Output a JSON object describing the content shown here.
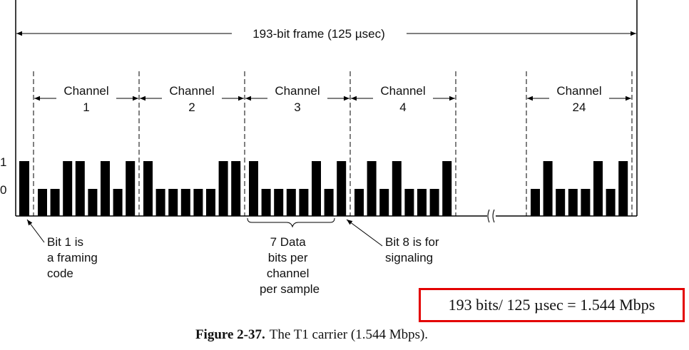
{
  "frame_label": "193-bit frame  (125 µsec)",
  "level_labels": {
    "one": "1",
    "zero": "0"
  },
  "framing_bit": 1,
  "channels": [
    {
      "label": "Channel",
      "number": "1",
      "bits": [
        0,
        0,
        1,
        1,
        0,
        1,
        0,
        1
      ]
    },
    {
      "label": "Channel",
      "number": "2",
      "bits": [
        1,
        0,
        0,
        0,
        0,
        0,
        1,
        1
      ]
    },
    {
      "label": "Channel",
      "number": "3",
      "bits": [
        1,
        0,
        0,
        0,
        0,
        1,
        0,
        1
      ]
    },
    {
      "label": "Channel",
      "number": "4",
      "bits": [
        0,
        1,
        0,
        1,
        0,
        0,
        0,
        1
      ]
    },
    {
      "label": "Channel",
      "number": "24",
      "bits": [
        0,
        1,
        0,
        0,
        0,
        1,
        0,
        1
      ]
    }
  ],
  "annotations": {
    "framing": [
      "Bit 1 is",
      "a framing",
      "code"
    ],
    "data_bits": [
      "7 Data",
      "bits per",
      "channel",
      "per sample"
    ],
    "signaling": [
      "Bit 8 is for",
      "signaling"
    ]
  },
  "formula": "193 bits/ 125 µsec = 1.544 Mbps",
  "caption": {
    "figure": "Figure 2-37.",
    "text": "The T1 carrier (1.544 Mbps)."
  },
  "colors": {
    "highlight_border": "#e30000"
  }
}
